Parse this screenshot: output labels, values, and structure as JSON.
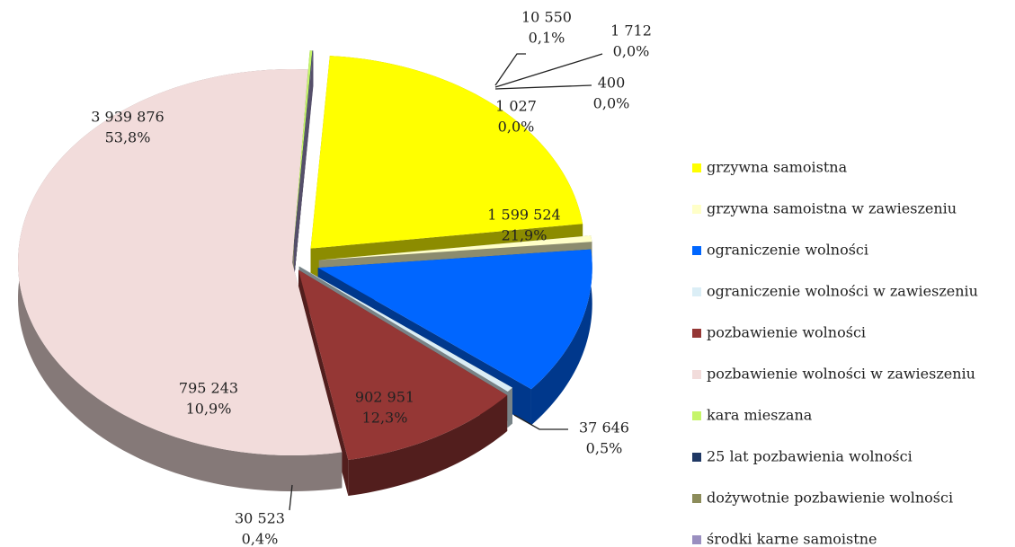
{
  "chart_data": {
    "type": "pie",
    "categories": [
      "grzywna samoistna",
      "grzywna samoistna w zawieszeniu",
      "ograniczenie wolności",
      "ograniczenie wolności w zawieszeniu",
      "pozbawienie wolności",
      "pozbawienie wolności w zawieszeniu",
      "kara mieszana",
      "25 lat pozbawienia wolności",
      "dożywotnie pozbawienie wolności",
      "środki karne samoistne"
    ],
    "values": [
      1599524,
      37646,
      902951,
      30523,
      795243,
      3939876,
      10550,
      1712,
      400,
      1027
    ],
    "value_labels": [
      "1 599 524",
      "37 646",
      "902 951",
      "30 523",
      "795 243",
      "3 939 876",
      "10 550",
      "1 712",
      "400",
      "1 027"
    ],
    "percents": [
      21.9,
      0.5,
      12.3,
      0.4,
      10.9,
      53.8,
      0.1,
      0.0,
      0.0,
      0.0
    ],
    "percent_labels": [
      "21,9%",
      "0,5%",
      "12,3%",
      "0,4%",
      "10,9%",
      "53,8%",
      "0,1%",
      "0,0%",
      "0,0%",
      "0,0%"
    ],
    "colors": [
      "#ffff00",
      "#ffffc8",
      "#0066ff",
      "#dbeef6",
      "#953735",
      "#f2dcdb",
      "#c6f56a",
      "#1f3864",
      "#8c8c5a",
      "#9a8fc0"
    ],
    "legend": "right"
  }
}
